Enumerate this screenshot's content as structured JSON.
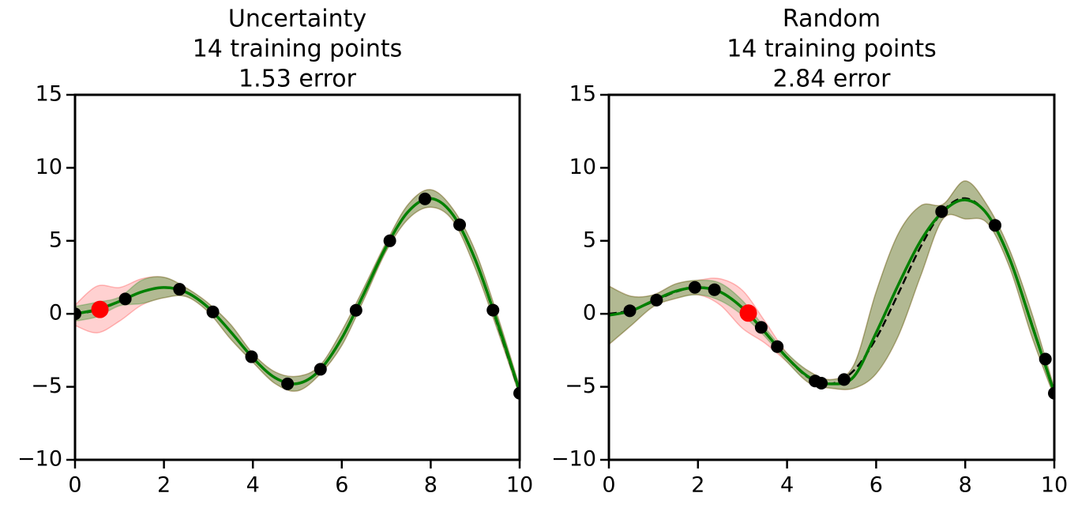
{
  "chart_data": [
    {
      "type": "line",
      "title": [
        "Uncertainty",
        "14 training points",
        "1.53 error"
      ],
      "xlim": [
        0,
        10
      ],
      "ylim": [
        -10,
        15
      ],
      "xticks": [
        0,
        2,
        4,
        6,
        8,
        10
      ],
      "yticks": [
        {
          "value": -10,
          "label": "−10"
        },
        {
          "value": -5,
          "label": "−5"
        },
        0,
        5,
        10,
        15
      ],
      "x": [
        0,
        0.5,
        1,
        1.5,
        2,
        2.5,
        3,
        3.5,
        4,
        4.5,
        5,
        5.5,
        6,
        6.5,
        7,
        7.5,
        8,
        8.5,
        9,
        9.5,
        10
      ],
      "bands": [
        {
          "color": "#ff0000",
          "lower": [
            -0.8,
            -1.3,
            -0.5,
            0.6,
            1.1,
            1.18,
            0.12,
            -1.73,
            -3.32,
            -4.78,
            -5.28,
            -4.17,
            -2.17,
            1.0,
            4.3,
            6.52,
            7.3,
            6.38,
            3.12,
            -1.1,
            -5.6
          ],
          "upper": [
            0.6,
            1.9,
            1.8,
            2.4,
            2.5,
            1.78,
            0.72,
            -0.73,
            -2.72,
            -3.98,
            -4.28,
            -3.57,
            -1.17,
            1.8,
            4.9,
            7.52,
            8.5,
            7.18,
            4.32,
            -0.1,
            -5.0
          ]
        },
        {
          "color": "#008000",
          "lower": [
            -0.5,
            -0.2,
            0.55,
            0.7,
            1.1,
            1.18,
            0.12,
            -1.73,
            -3.32,
            -4.78,
            -5.28,
            -4.17,
            -2.17,
            1.0,
            4.3,
            6.52,
            7.3,
            6.38,
            3.12,
            -1.1,
            -5.6
          ],
          "upper": [
            0.5,
            0.8,
            1.15,
            2.3,
            2.5,
            1.78,
            0.72,
            -0.73,
            -2.72,
            -3.98,
            -4.28,
            -3.57,
            -1.17,
            1.8,
            4.9,
            7.52,
            8.5,
            7.18,
            4.32,
            -0.1,
            -5.0
          ]
        }
      ],
      "series": [
        {
          "color": "#000000",
          "dashed": true,
          "values": [
            0,
            0.24,
            0.84,
            1.5,
            1.82,
            1.5,
            0.42,
            -1.23,
            -3.03,
            -4.4,
            -4.79,
            -3.88,
            -1.68,
            1.4,
            4.6,
            7.04,
            7.91,
            6.79,
            3.71,
            -0.72,
            -5.44
          ]
        },
        {
          "color": "#008000",
          "dashed": false,
          "values": [
            0.0,
            0.3,
            0.85,
            1.5,
            1.8,
            1.48,
            0.42,
            -1.23,
            -3.02,
            -4.38,
            -4.78,
            -3.87,
            -1.67,
            1.4,
            4.6,
            7.02,
            7.9,
            6.78,
            3.72,
            -0.6,
            -5.3
          ]
        }
      ],
      "points": [
        {
          "color": "#000000",
          "x": [
            0,
            1.13,
            2.35,
            3.1,
            3.97,
            4.78,
            5.52,
            6.32,
            7.08,
            7.87,
            8.65,
            9.4,
            10
          ],
          "y": [
            0,
            1.02,
            1.68,
            0.13,
            -2.94,
            -4.8,
            -3.8,
            0.24,
            5.0,
            7.87,
            6.1,
            0.25,
            -5.44
          ]
        },
        {
          "color": "#ff0000",
          "x": [
            0.56
          ],
          "y": [
            0.3
          ]
        }
      ]
    },
    {
      "type": "line",
      "title": [
        "Random",
        "14 training points",
        "2.84 error"
      ],
      "xlim": [
        0,
        10
      ],
      "ylim": [
        -10,
        15
      ],
      "xticks": [
        0,
        2,
        4,
        6,
        8,
        10
      ],
      "yticks": [
        {
          "value": -10,
          "label": "−10"
        },
        {
          "value": -5,
          "label": "−5"
        },
        0,
        5,
        10,
        15
      ],
      "x": [
        0,
        0.5,
        1,
        1.5,
        2,
        2.5,
        3,
        3.5,
        4,
        4.5,
        5,
        5.5,
        6,
        6.5,
        7,
        7.5,
        8,
        8.5,
        9,
        9.5,
        10
      ],
      "bands": [
        {
          "color": "#ff0000",
          "lower": [
            -2.1,
            -0.8,
            0.5,
            1.05,
            1.3,
            0.6,
            -1.0,
            -2.0,
            -3.3,
            -4.75,
            -5.1,
            -5.1,
            -4.1,
            -1.5,
            2.6,
            6.5,
            6.5,
            6.2,
            3.15,
            -1.6,
            -5.7
          ],
          "upper": [
            1.9,
            1.2,
            1.3,
            2.05,
            2.3,
            2.4,
            1.6,
            -0.5,
            -2.7,
            -3.95,
            -4.5,
            -3.5,
            1.5,
            5.5,
            7.4,
            7.5,
            9.1,
            7.4,
            4.35,
            0.0,
            -5.1
          ]
        },
        {
          "color": "#008000",
          "lower": [
            -2.1,
            -0.8,
            0.5,
            1.05,
            1.3,
            0.9,
            -0.1,
            -1.55,
            -3.3,
            -4.75,
            -5.1,
            -5.1,
            -4.1,
            -1.5,
            2.6,
            6.5,
            6.5,
            6.2,
            3.15,
            -1.6,
            -5.7
          ],
          "upper": [
            1.9,
            1.2,
            1.3,
            2.05,
            2.3,
            2.1,
            0.9,
            -0.95,
            -2.7,
            -3.95,
            -4.5,
            -3.5,
            1.5,
            5.5,
            7.4,
            7.5,
            9.1,
            7.4,
            4.35,
            0.0,
            -5.1
          ]
        }
      ],
      "series": [
        {
          "color": "#000000",
          "dashed": true,
          "values": [
            0,
            0.24,
            0.84,
            1.5,
            1.82,
            1.5,
            0.42,
            -1.23,
            -3.03,
            -4.4,
            -4.79,
            -3.88,
            -1.68,
            1.4,
            4.6,
            7.04,
            7.91,
            6.79,
            3.71,
            -0.72,
            -5.44
          ]
        },
        {
          "color": "#008000",
          "dashed": false,
          "values": [
            -0.1,
            0.2,
            0.9,
            1.55,
            1.8,
            1.5,
            0.4,
            -1.25,
            -3.0,
            -4.35,
            -4.8,
            -4.3,
            -1.3,
            2.0,
            5.0,
            7.0,
            7.8,
            6.8,
            3.75,
            -0.8,
            -5.4
          ]
        }
      ],
      "points": [
        {
          "color": "#000000",
          "x": [
            0.47,
            1.07,
            1.93,
            2.37,
            3.42,
            3.78,
            4.63,
            4.77,
            5.28,
            7.47,
            8.67,
            9.8,
            10
          ],
          "y": [
            0.21,
            0.94,
            1.81,
            1.65,
            -0.93,
            -2.25,
            -4.6,
            -4.75,
            -4.5,
            7.0,
            6.06,
            -3.1,
            -5.44
          ]
        },
        {
          "color": "#ff0000",
          "x": [
            3.13
          ],
          "y": [
            0.05
          ]
        }
      ]
    }
  ]
}
